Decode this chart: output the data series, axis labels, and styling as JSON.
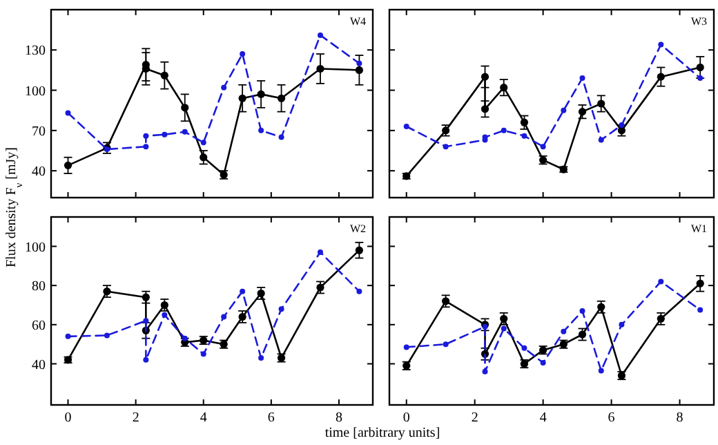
{
  "chart_data": [
    {
      "type": "line",
      "title": "W4",
      "ylabel": "Flux density F$_{ν}$ [mJy]",
      "x": [
        0,
        1.15,
        2.3,
        2.3,
        2.85,
        3.45,
        4.0,
        4.6,
        5.15,
        5.7,
        6.3,
        7.45,
        8.6
      ],
      "xlim": [
        -0.5,
        9
      ],
      "xticks": [
        0,
        2,
        4,
        6,
        8
      ],
      "ylim": [
        20,
        160
      ],
      "yticks": [
        40,
        70,
        100,
        130
      ],
      "tick_labels": "y",
      "marker": "circle",
      "series": [
        {
          "color": "#000000",
          "line_style": "solid",
          "values": [
            44,
            57,
            119,
            116,
            111,
            87,
            50,
            37,
            94,
            97,
            94,
            116,
            115
          ],
          "errors": [
            6,
            4,
            12,
            12,
            10,
            10,
            5,
            3,
            10,
            10,
            10,
            11,
            11
          ]
        },
        {
          "color": "#1a1adb",
          "line_style": "dashed",
          "values": [
            83,
            56,
            58,
            66,
            67,
            69,
            61,
            102,
            127,
            70,
            65,
            141,
            120
          ]
        }
      ]
    },
    {
      "type": "line",
      "title": "W3",
      "x": [
        0,
        1.15,
        2.3,
        2.3,
        2.85,
        3.45,
        4.0,
        4.6,
        5.15,
        5.7,
        6.3,
        7.45,
        8.6
      ],
      "xlim": [
        -0.5,
        9
      ],
      "xticks": [
        0,
        2,
        4,
        6,
        8
      ],
      "ylim": [
        20,
        160
      ],
      "yticks": [
        40,
        70,
        100,
        130
      ],
      "tick_labels": false,
      "marker": "circle",
      "series": [
        {
          "color": "#000000",
          "line_style": "solid",
          "values": [
            36,
            70,
            110,
            86,
            102,
            76,
            48,
            41,
            84,
            90,
            70,
            110,
            117
          ],
          "errors": [
            2,
            4,
            8,
            6,
            6,
            5,
            3,
            2,
            5,
            6,
            4,
            7,
            8
          ]
        },
        {
          "color": "#1a1adb",
          "line_style": "dashed",
          "values": [
            73,
            58,
            63,
            65,
            70,
            66,
            58,
            85,
            109,
            63,
            74,
            134,
            109
          ]
        }
      ]
    },
    {
      "type": "line",
      "title": "W2",
      "xlabel": "time [arbitrary units]",
      "x": [
        0,
        1.15,
        2.3,
        2.3,
        2.85,
        3.45,
        4.0,
        4.6,
        5.15,
        5.7,
        6.3,
        7.45,
        8.6
      ],
      "xlim": [
        -0.5,
        9
      ],
      "xticks": [
        0,
        2,
        4,
        6,
        8
      ],
      "ylim": [
        19,
        115
      ],
      "yticks": [
        40,
        60,
        80,
        100
      ],
      "marker": "circle",
      "series": [
        {
          "color": "#000000",
          "line_style": "solid",
          "values": [
            42,
            77,
            74,
            57,
            70,
            51,
            52,
            50,
            64,
            76,
            43,
            79,
            98
          ],
          "errors": [
            1.5,
            3,
            3,
            4,
            3,
            2,
            2,
            2,
            3,
            3,
            2,
            3,
            4
          ]
        },
        {
          "color": "#1a1adb",
          "line_style": "dashed",
          "values": [
            54,
            54.5,
            62,
            42,
            65,
            53,
            45,
            64,
            77,
            43,
            68,
            97,
            77
          ]
        }
      ]
    },
    {
      "type": "line",
      "title": "W1",
      "x": [
        0,
        1.15,
        2.3,
        2.3,
        2.85,
        3.45,
        4.0,
        4.6,
        5.15,
        5.7,
        6.3,
        7.45,
        8.6
      ],
      "xlim": [
        -0.5,
        9
      ],
      "xticks": [
        0,
        2,
        4,
        6,
        8
      ],
      "ylim": [
        19,
        115
      ],
      "yticks": [
        40,
        60,
        80,
        100
      ],
      "tick_labels": "x",
      "marker": "circle",
      "series": [
        {
          "color": "#000000",
          "line_style": "solid",
          "values": [
            39,
            72,
            60,
            45,
            63,
            40,
            47,
            50,
            55,
            69,
            34,
            63,
            81
          ],
          "errors": [
            2,
            3,
            3,
            3,
            3,
            2,
            2,
            2,
            3,
            3,
            2,
            3,
            4
          ]
        },
        {
          "color": "#1a1adb",
          "line_style": "dashed",
          "values": [
            48.5,
            50,
            59,
            36,
            58,
            48,
            40.5,
            56.5,
            67,
            36.5,
            60,
            82,
            67.5
          ]
        }
      ]
    }
  ]
}
